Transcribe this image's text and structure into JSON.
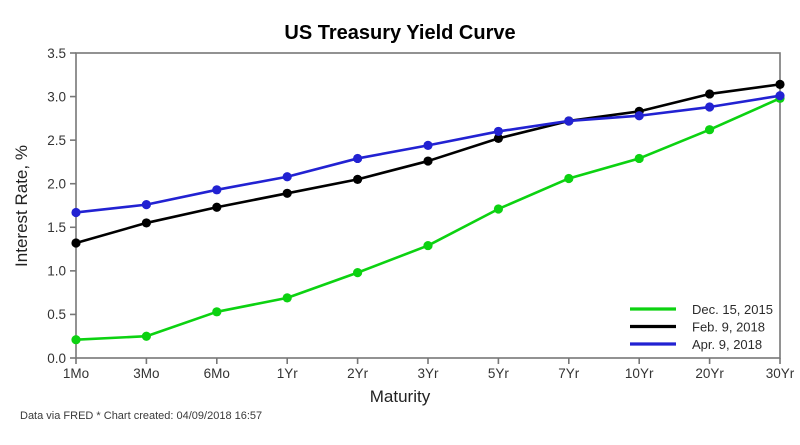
{
  "title": "US Treasury Yield Curve",
  "footer": "Data via FRED * Chart created: 04/09/2018 16:57",
  "chart_data": {
    "type": "line",
    "title": "US Treasury Yield Curve",
    "xlabel": "Maturity",
    "ylabel": "Interest Rate, %",
    "categories": [
      "1Mo",
      "3Mo",
      "6Mo",
      "1Yr",
      "2Yr",
      "3Yr",
      "5Yr",
      "7Yr",
      "10Yr",
      "20Yr",
      "30Yr"
    ],
    "series": [
      {
        "name": "Dec. 15, 2015",
        "color": "#0cd211",
        "values": [
          0.21,
          0.25,
          0.53,
          0.69,
          0.98,
          1.29,
          1.71,
          2.06,
          2.29,
          2.62,
          2.98
        ]
      },
      {
        "name": "Feb. 9, 2018",
        "color": "#000000",
        "values": [
          1.32,
          1.55,
          1.73,
          1.89,
          2.05,
          2.26,
          2.52,
          2.72,
          2.83,
          3.03,
          3.14
        ]
      },
      {
        "name": "Apr. 9, 2018",
        "color": "#2222d2",
        "values": [
          1.67,
          1.76,
          1.93,
          2.08,
          2.29,
          2.44,
          2.6,
          2.72,
          2.78,
          2.88,
          3.01
        ]
      }
    ],
    "y_ticks": [
      0.0,
      0.5,
      1.0,
      1.5,
      2.0,
      2.5,
      3.0,
      3.5
    ],
    "ylim": [
      0.0,
      3.5
    ],
    "grid": false,
    "legend_position": "lower right",
    "marker": "circle",
    "axis_color": "#777777",
    "background_color": "#ffffff",
    "footer": "Data via FRED * Chart created: 04/09/2018 16:57"
  }
}
